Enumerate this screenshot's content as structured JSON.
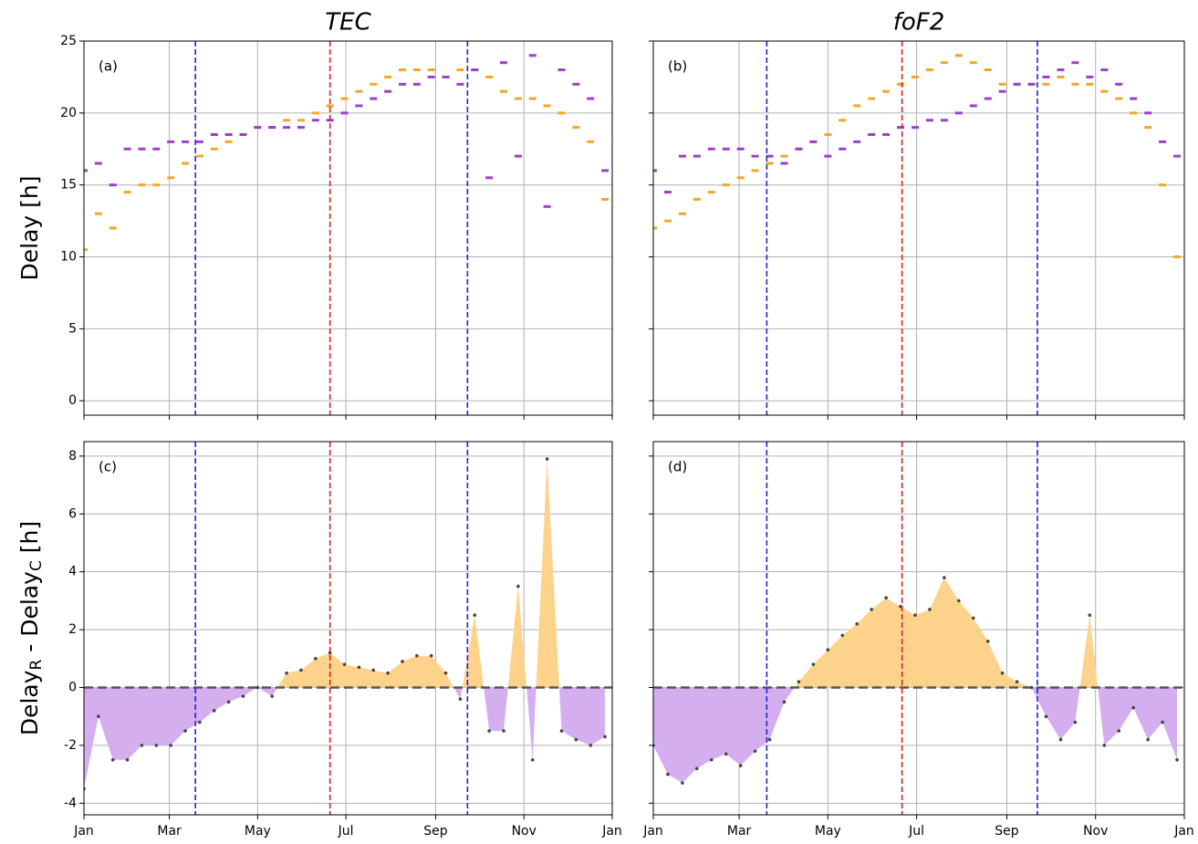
{
  "chart_data": [
    {
      "type": "scatter",
      "title": "TEC",
      "panel_label": "(a)",
      "ylabel": [
        "Delay [h]"
      ],
      "x": [
        0,
        10,
        20,
        30,
        40,
        50,
        60,
        70,
        80,
        90,
        100,
        110,
        120,
        130,
        140,
        150,
        160,
        170,
        180,
        190,
        200,
        210,
        220,
        230,
        240,
        250,
        260,
        270,
        280,
        290,
        300,
        310,
        320,
        330,
        340,
        350,
        360
      ],
      "series": [
        {
          "color": "#f5a623",
          "values": [
            10.5,
            13,
            12,
            14.5,
            15,
            15,
            15.5,
            16.5,
            17,
            17.5,
            18,
            18.5,
            19,
            19,
            19.5,
            19.5,
            20,
            20.5,
            21,
            21.5,
            22,
            22.5,
            23,
            23,
            23,
            22.5,
            23,
            23,
            22.5,
            21.5,
            21,
            21,
            20.5,
            20,
            19,
            18,
            14
          ]
        },
        {
          "color": "#9b3fcf",
          "values": [
            16,
            16.5,
            15,
            17.5,
            17.5,
            17.5,
            18,
            18,
            18,
            18.5,
            18.5,
            18.5,
            19,
            19,
            19,
            19,
            19.5,
            19.5,
            20,
            20.5,
            21,
            21.5,
            22,
            22,
            22.5,
            22.5,
            22,
            23,
            15.5,
            23.5,
            17,
            24,
            13.5,
            23,
            22,
            21,
            16
          ]
        }
      ],
      "xlim": [
        0,
        365
      ],
      "xticks": [
        {
          "value": 0,
          "label": "Jan"
        },
        {
          "value": 59,
          "label": "Mar"
        },
        {
          "value": 120,
          "label": "May"
        },
        {
          "value": 181,
          "label": "Jul"
        },
        {
          "value": 243,
          "label": "Sep"
        },
        {
          "value": 304,
          "label": "Nov"
        },
        {
          "value": 365,
          "label": "Jan"
        }
      ],
      "xtick_labels": false,
      "ylim": [
        -1,
        25
      ],
      "yticks": [
        0,
        5,
        10,
        15,
        20,
        25
      ],
      "ytick_labels": true,
      "grid": true,
      "vlines": [
        {
          "value": 77,
          "color": "#2222dd"
        },
        {
          "value": 170,
          "color": "#dd2222"
        },
        {
          "value": 265,
          "color": "#2222dd"
        }
      ]
    },
    {
      "type": "scatter",
      "title": "foF2",
      "panel_label": "(b)",
      "x": [
        0,
        10,
        20,
        30,
        40,
        50,
        60,
        70,
        80,
        90,
        100,
        110,
        120,
        130,
        140,
        150,
        160,
        170,
        180,
        190,
        200,
        210,
        220,
        230,
        240,
        250,
        260,
        270,
        280,
        290,
        300,
        310,
        320,
        330,
        340,
        350,
        360
      ],
      "series": [
        {
          "color": "#f5a623",
          "values": [
            12,
            12.5,
            13,
            14,
            14.5,
            15,
            15.5,
            16,
            16.5,
            17,
            17.5,
            18,
            18.5,
            19.5,
            20.5,
            21,
            21.5,
            22,
            22.5,
            23,
            23.5,
            24,
            23.5,
            23,
            22,
            22,
            22,
            22,
            22.5,
            22,
            22,
            21.5,
            21,
            20,
            19,
            15,
            10
          ]
        },
        {
          "color": "#9b3fcf",
          "values": [
            16,
            14.5,
            17,
            17,
            17.5,
            17.5,
            17.5,
            17,
            17,
            16.5,
            17.5,
            18,
            17,
            17.5,
            18,
            18.5,
            18.5,
            19,
            19,
            19.5,
            19.5,
            20,
            20.5,
            21,
            21.5,
            22,
            22,
            22.5,
            23,
            23.5,
            22.5,
            23,
            22,
            21,
            20,
            18,
            17
          ]
        }
      ],
      "xlim": [
        0,
        365
      ],
      "xticks": [
        {
          "value": 0,
          "label": "Jan"
        },
        {
          "value": 59,
          "label": "Mar"
        },
        {
          "value": 120,
          "label": "May"
        },
        {
          "value": 181,
          "label": "Jul"
        },
        {
          "value": 243,
          "label": "Sep"
        },
        {
          "value": 304,
          "label": "Nov"
        },
        {
          "value": 365,
          "label": "Jan"
        }
      ],
      "xtick_labels": false,
      "ylim": [
        -1,
        25
      ],
      "yticks": [
        0,
        5,
        10,
        15,
        20,
        25
      ],
      "ytick_labels": false,
      "grid": true,
      "vlines": [
        {
          "value": 78,
          "color": "#2222dd"
        },
        {
          "value": 171,
          "color": "#dd2222"
        },
        {
          "value": 264,
          "color": "#2222dd"
        }
      ]
    },
    {
      "type": "area",
      "panel_label": "(c)",
      "ylabel": [
        "Delay",
        "R",
        " - Delay",
        "C",
        " [h]"
      ],
      "x": [
        0,
        10,
        20,
        30,
        40,
        50,
        60,
        70,
        80,
        90,
        100,
        110,
        120,
        130,
        140,
        150,
        160,
        170,
        180,
        190,
        200,
        210,
        220,
        230,
        240,
        250,
        260,
        270,
        280,
        290,
        300,
        310,
        320,
        330,
        340,
        350,
        360
      ],
      "values": [
        -3.5,
        -1,
        -2.5,
        -2.5,
        -2,
        -2,
        -2,
        -1.5,
        -1.2,
        -0.8,
        -0.5,
        -0.3,
        0,
        -0.3,
        0.5,
        0.6,
        1.0,
        1.2,
        0.8,
        0.7,
        0.6,
        0.5,
        0.9,
        1.1,
        1.1,
        0.5,
        -0.4,
        2.5,
        -1.5,
        -1.5,
        3.5,
        -2.5,
        7.9,
        -1.5,
        -1.8,
        -2,
        -1.7
      ],
      "pos_color": "#fdd38b",
      "neg_color": "#d5aef0",
      "point_color": "#444444",
      "hline": 0,
      "xlim": [
        0,
        365
      ],
      "xticks": [
        {
          "value": 0,
          "label": "Jan"
        },
        {
          "value": 59,
          "label": "Mar"
        },
        {
          "value": 120,
          "label": "May"
        },
        {
          "value": 181,
          "label": "Jul"
        },
        {
          "value": 243,
          "label": "Sep"
        },
        {
          "value": 304,
          "label": "Nov"
        },
        {
          "value": 365,
          "label": "Jan"
        }
      ],
      "xtick_labels": true,
      "ylim": [
        -4.4,
        8.5
      ],
      "yticks": [
        -4,
        -2,
        0,
        2,
        4,
        6,
        8
      ],
      "ytick_labels": true,
      "grid": true,
      "vlines": [
        {
          "value": 77,
          "color": "#2222dd"
        },
        {
          "value": 170,
          "color": "#dd2222"
        },
        {
          "value": 265,
          "color": "#2222dd"
        }
      ]
    },
    {
      "type": "area",
      "panel_label": "(d)",
      "x": [
        0,
        10,
        20,
        30,
        40,
        50,
        60,
        70,
        80,
        90,
        100,
        110,
        120,
        130,
        140,
        150,
        160,
        170,
        180,
        190,
        200,
        210,
        220,
        230,
        240,
        250,
        260,
        270,
        280,
        290,
        300,
        310,
        320,
        330,
        340,
        350,
        360
      ],
      "values": [
        -2,
        -3,
        -3.3,
        -2.8,
        -2.5,
        -2.3,
        -2.7,
        -2.2,
        -1.8,
        -0.5,
        0.2,
        0.8,
        1.3,
        1.8,
        2.2,
        2.7,
        3.1,
        2.8,
        2.5,
        2.7,
        3.8,
        3,
        2.4,
        1.6,
        0.5,
        0.2,
        0,
        -1.0,
        -1.8,
        -1.2,
        2.5,
        -2.0,
        -1.5,
        -0.7,
        -1.8,
        -1.2,
        -2.5
      ],
      "pos_color": "#fdd38b",
      "neg_color": "#d5aef0",
      "point_color": "#444444",
      "hline": 0,
      "xlim": [
        0,
        365
      ],
      "xticks": [
        {
          "value": 0,
          "label": "Jan"
        },
        {
          "value": 59,
          "label": "Mar"
        },
        {
          "value": 120,
          "label": "May"
        },
        {
          "value": 181,
          "label": "Jul"
        },
        {
          "value": 243,
          "label": "Sep"
        },
        {
          "value": 304,
          "label": "Nov"
        },
        {
          "value": 365,
          "label": "Jan"
        }
      ],
      "xtick_labels": true,
      "ylim": [
        -4.4,
        8.5
      ],
      "yticks": [
        -4,
        -2,
        0,
        2,
        4,
        6,
        8
      ],
      "ytick_labels": false,
      "grid": true,
      "vlines": [
        {
          "value": 78,
          "color": "#2222dd"
        },
        {
          "value": 171,
          "color": "#dd2222"
        },
        {
          "value": 264,
          "color": "#2222dd"
        }
      ]
    }
  ]
}
